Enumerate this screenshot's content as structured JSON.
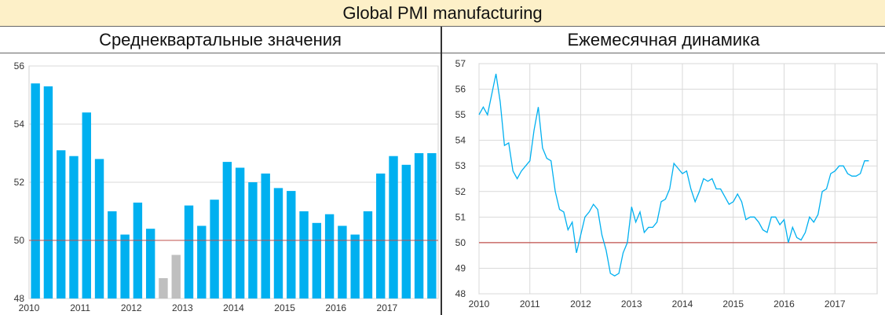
{
  "header": {
    "title": "Global PMI manufacturing"
  },
  "left_panel": {
    "title": "Среднеквартальные значения"
  },
  "right_panel": {
    "title": "Ежемесячная динамика"
  },
  "chart_data": [
    {
      "type": "bar",
      "title": "Среднеквартальные значения",
      "ylim": [
        48,
        56
      ],
      "yticks": [
        48,
        50,
        52,
        54,
        56
      ],
      "xtick_labels": [
        "2010",
        "2011",
        "2012",
        "2013",
        "2014",
        "2015",
        "2016",
        "2017"
      ],
      "reference_line": 50,
      "grid": "horizontal",
      "colors": {
        "normal": "#00b0f0",
        "below_50": "#bfbfbf",
        "reference": "#c0504d"
      },
      "categories": [
        "2010Q1",
        "2010Q2",
        "2010Q3",
        "2010Q4",
        "2011Q1",
        "2011Q2",
        "2011Q3",
        "2011Q4",
        "2012Q1",
        "2012Q2",
        "2012Q3",
        "2012Q4",
        "2013Q1",
        "2013Q2",
        "2013Q3",
        "2013Q4",
        "2014Q1",
        "2014Q2",
        "2014Q3",
        "2014Q4",
        "2015Q1",
        "2015Q2",
        "2015Q3",
        "2015Q4",
        "2016Q1",
        "2016Q2",
        "2016Q3",
        "2016Q4",
        "2017Q1",
        "2017Q2",
        "2017Q3",
        "2017Q4"
      ],
      "values": [
        55.4,
        55.3,
        53.1,
        52.9,
        54.4,
        52.8,
        51.0,
        50.2,
        51.3,
        50.4,
        48.7,
        49.5,
        51.2,
        50.5,
        51.4,
        52.7,
        52.5,
        52.0,
        52.3,
        51.8,
        51.7,
        51.0,
        50.6,
        50.9,
        50.5,
        50.2,
        51.0,
        52.3,
        52.9,
        52.6,
        53.0,
        53.0
      ]
    },
    {
      "type": "line",
      "title": "Ежемесячная динамика",
      "ylim": [
        48,
        57
      ],
      "yticks": [
        48,
        49,
        50,
        51,
        52,
        53,
        54,
        55,
        56,
        57
      ],
      "xlim": [
        2010.0,
        2017.83
      ],
      "xtick_labels": [
        "2010",
        "2011",
        "2012",
        "2013",
        "2014",
        "2015",
        "2016",
        "2017"
      ],
      "reference_line": 50,
      "grid": "both",
      "colors": {
        "line": "#00b0f0",
        "reference": "#c0504d"
      },
      "series": [
        {
          "start": 2010.0,
          "step_months": 1,
          "values": [
            55.0,
            55.3,
            55.0,
            55.8,
            56.6,
            55.5,
            53.8,
            53.9,
            52.8,
            52.5,
            52.8,
            53.0,
            53.2,
            54.4,
            55.3,
            53.7,
            53.3,
            53.2,
            52.0,
            51.3,
            51.2,
            50.5,
            50.8,
            49.6,
            50.3,
            51.0,
            51.2,
            51.5,
            51.3,
            50.3,
            49.7,
            48.8,
            48.7,
            48.8,
            49.6,
            50.0,
            51.4,
            50.8,
            51.2,
            50.4,
            50.6,
            50.6,
            50.8,
            51.6,
            51.7,
            52.1,
            53.1,
            52.9,
            52.7,
            52.8,
            52.1,
            51.6,
            52.0,
            52.5,
            52.4,
            52.5,
            52.1,
            52.1,
            51.8,
            51.5,
            51.6,
            51.9,
            51.6,
            50.9,
            51.0,
            51.0,
            50.8,
            50.5,
            50.4,
            51.0,
            51.0,
            50.7,
            50.9,
            50.0,
            50.6,
            50.2,
            50.1,
            50.4,
            51.0,
            50.8,
            51.1,
            52.0,
            52.1,
            52.7,
            52.8,
            53.0,
            53.0,
            52.7,
            52.6,
            52.6,
            52.7,
            53.2,
            53.2
          ]
        }
      ]
    }
  ]
}
